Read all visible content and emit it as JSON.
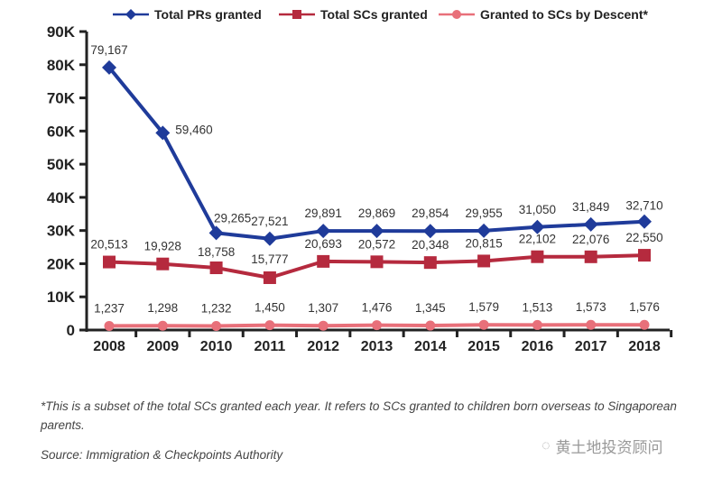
{
  "chart_data": {
    "type": "line",
    "title": "",
    "xlabel": "",
    "ylabel": "",
    "x": [
      "2008",
      "2009",
      "2010",
      "2011",
      "2012",
      "2013",
      "2014",
      "2015",
      "2016",
      "2017",
      "2018"
    ],
    "ylim": [
      0,
      90000
    ],
    "yticks": [
      0,
      10000,
      20000,
      30000,
      40000,
      50000,
      60000,
      70000,
      80000,
      90000
    ],
    "ytick_labels": [
      "0",
      "10K",
      "20K",
      "30K",
      "40K",
      "50K",
      "60K",
      "70K",
      "80K",
      "90K"
    ],
    "grid": false,
    "legend_position": "top-center",
    "series": [
      {
        "name": "Total PRs granted",
        "color": "#1f3b9a",
        "marker": "diamond",
        "values": [
          79167,
          59460,
          29265,
          27521,
          29891,
          29869,
          29854,
          29955,
          31050,
          31849,
          32710
        ],
        "labels": [
          "79,167",
          "59,460",
          "29,265",
          "27,521",
          "29,891",
          "29,869",
          "29,854",
          "29,955",
          "31,050",
          "31,849",
          "32,710"
        ]
      },
      {
        "name": "Total SCs granted",
        "color": "#b52a3e",
        "marker": "square",
        "values": [
          20513,
          19928,
          18758,
          15777,
          20693,
          20572,
          20348,
          20815,
          22102,
          22076,
          22550
        ],
        "labels": [
          "20,513",
          "19,928",
          "18,758",
          "15,777",
          "20,693",
          "20,572",
          "20,348",
          "20,815",
          "22,102",
          "22,076",
          "22,550"
        ]
      },
      {
        "name": "Granted to SCs by Descent*",
        "color": "#e8707a",
        "marker": "circle",
        "values": [
          1237,
          1298,
          1232,
          1450,
          1307,
          1476,
          1345,
          1579,
          1513,
          1573,
          1576
        ],
        "labels": [
          "1,237",
          "1,298",
          "1,232",
          "1,450",
          "1,307",
          "1,476",
          "1,345",
          "1,579",
          "1,513",
          "1,573",
          "1,576"
        ]
      }
    ]
  },
  "footnote": "*This is a subset of the total SCs granted each year. It refers to SCs granted to children born overseas to Singaporean parents.",
  "source": "Source: Immigration & Checkpoints Authority",
  "watermark": "黄土地投资顾问",
  "watermark_icon": "wechat-icon"
}
